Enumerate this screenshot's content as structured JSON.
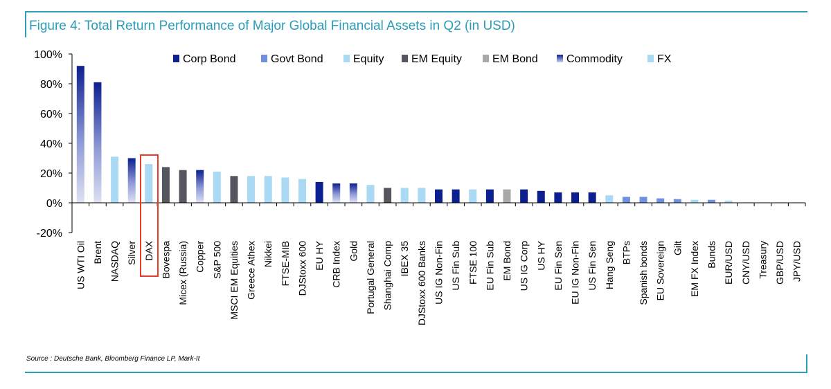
{
  "title": "Figure 4: Total Return Performance of Major Global Financial Assets in Q2 (in USD)",
  "source": "Source : Deutsche Bank, Bloomberg Finance LP, Mark-It",
  "colors": {
    "Corp Bond": "#0c1f8f",
    "Govt Bond": "#6f8fe0",
    "Equity": "#a9d9f3",
    "EM Equity": "#555660",
    "EM Bond": "#a8a8aa",
    "Commodity": "#0c1f8f",
    "FX": "#a9d9f3",
    "highlight": "#e8392a",
    "accent": "#2e9fb8"
  },
  "chart_data": {
    "type": "bar",
    "title": "Figure 4: Total Return Performance of Major Global Financial Assets in Q2 (in USD)",
    "xlabel": "",
    "ylabel": "",
    "ylim": [
      -20,
      100
    ],
    "yticks": [
      "100%",
      "80%",
      "60%",
      "40%",
      "20%",
      "0%",
      "-20%"
    ],
    "ytick_values": [
      100,
      80,
      60,
      40,
      20,
      0,
      -20
    ],
    "legend": [
      "Corp Bond",
      "Govt Bond",
      "Equity",
      "EM Equity",
      "EM Bond",
      "Commodity",
      "FX"
    ],
    "legend_position": "top",
    "highlighted_category": "DAX",
    "categories": [
      "US WTI Oil",
      "Brent",
      "NASDAQ",
      "Silver",
      "DAX",
      "Bovespa",
      "Micex (Russia)",
      "Copper",
      "S&P 500",
      "MSCI EM Equities",
      "Greece Athex",
      "Nikkei",
      "FTSE-MIB",
      "DJStoxx 600",
      "EU HY",
      "CRB Index",
      "Gold",
      "Portugal General",
      "Shanghai Comp",
      "IBEX 35",
      "DJStoxx 600 Banks",
      "US IG Non-Fin",
      "US Fin Sub",
      "FTSE 100",
      "EU Fin Sub",
      "EM Bond",
      "US IG Corp",
      "US HY",
      "EU Fin Sen",
      "EU IG Non-Fin",
      "US Fin Sen",
      "Hang Seng",
      "BTPs",
      "Spanish bonds",
      "EU Sovereign",
      "Gilt",
      "EM FX Index",
      "Bunds",
      "EUR/USD",
      "CNY/USD",
      "Treasury",
      "GBP/USD",
      "JPY/USD"
    ],
    "values": [
      92,
      81,
      31,
      30,
      26,
      24,
      22,
      22,
      21,
      18,
      18,
      18,
      17,
      16,
      14,
      13,
      13,
      12,
      10,
      10,
      10,
      9,
      9,
      9,
      9,
      9,
      9,
      8,
      7,
      7,
      7,
      5,
      4,
      4,
      3,
      2.5,
      2,
      2,
      1.5,
      0,
      0,
      0,
      0
    ],
    "types": [
      "Commodity",
      "Commodity",
      "Equity",
      "Commodity",
      "Equity",
      "EM Equity",
      "EM Equity",
      "Commodity",
      "Equity",
      "EM Equity",
      "Equity",
      "Equity",
      "Equity",
      "Equity",
      "Corp Bond",
      "Commodity",
      "Commodity",
      "Equity",
      "EM Equity",
      "Equity",
      "Equity",
      "Corp Bond",
      "Corp Bond",
      "Equity",
      "Corp Bond",
      "EM Bond",
      "Corp Bond",
      "Corp Bond",
      "Corp Bond",
      "Corp Bond",
      "Corp Bond",
      "Equity",
      "Govt Bond",
      "Govt Bond",
      "Govt Bond",
      "Govt Bond",
      "FX",
      "Govt Bond",
      "FX",
      "FX",
      "Govt Bond",
      "FX",
      "FX"
    ]
  }
}
